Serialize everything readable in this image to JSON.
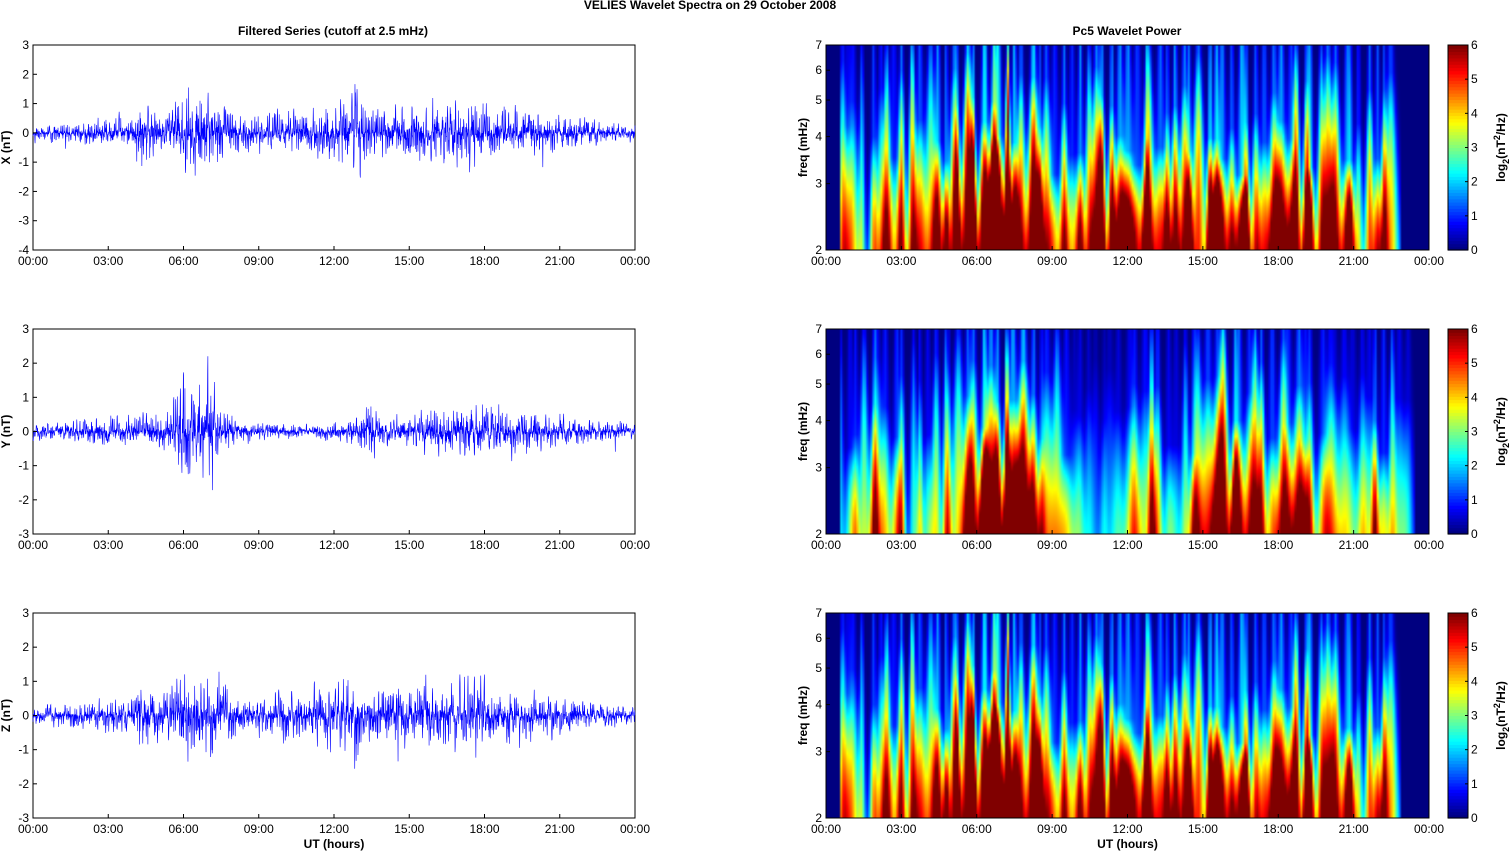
{
  "figure": {
    "title": "VELIES Wavelet Spectra on 29 October   2008",
    "left_column_title": "Filtered Series (cutoff at 2.5 mHz)",
    "right_column_title": "Pc5 Wavelet Power",
    "xlabel": "UT (hours)",
    "spec_ylabel": "freq (mHz)",
    "cbar_label_prefix": "log",
    "cbar_label_sub": "2",
    "cbar_label_mid": "(nT",
    "cbar_label_sup": "2",
    "cbar_label_suffix": "/Hz)"
  },
  "chart_data": [
    {
      "type": "line",
      "panel": "X",
      "ylabel": "X (nT)",
      "xlim": [
        "00:00",
        "24:00"
      ],
      "xticks": [
        "00:00",
        "03:00",
        "06:00",
        "09:00",
        "12:00",
        "15:00",
        "18:00",
        "21:00",
        "00:00"
      ],
      "ylim": [
        -4,
        3
      ],
      "yticks": [
        "-4",
        "-3",
        "-2",
        "-1",
        "0",
        "1",
        "2",
        "3"
      ],
      "line_color": "#0000ff",
      "envelope": {
        "hours": [
          0,
          1,
          2,
          3,
          4,
          4.3,
          5,
          5.5,
          6,
          6.5,
          7,
          7.5,
          8,
          8.5,
          9,
          9.5,
          10,
          10.5,
          11,
          11.5,
          12,
          12.5,
          12.9,
          13.3,
          14,
          14.5,
          15,
          15.5,
          16,
          16.5,
          17,
          17.5,
          18,
          18.5,
          19,
          19.5,
          20,
          20.5,
          21,
          21.5,
          22,
          22.5,
          23,
          23.5,
          24
        ],
        "amplitude_nT": [
          0.45,
          0.55,
          0.65,
          0.8,
          0.9,
          2.2,
          1.0,
          1.3,
          2.4,
          2.5,
          2.3,
          1.7,
          1.1,
          1.0,
          0.95,
          1.0,
          1.2,
          1.1,
          1.3,
          1.4,
          1.5,
          1.9,
          2.9,
          1.5,
          1.3,
          1.5,
          1.8,
          1.6,
          1.5,
          1.6,
          1.8,
          2.0,
          1.6,
          1.3,
          1.5,
          1.3,
          1.2,
          1.0,
          1.0,
          0.9,
          0.8,
          0.6,
          0.55,
          0.5,
          0.45
        ]
      }
    },
    {
      "type": "line",
      "panel": "Y",
      "ylabel": "Y (nT)",
      "xlim": [
        "00:00",
        "24:00"
      ],
      "xticks": [
        "00:00",
        "03:00",
        "06:00",
        "09:00",
        "12:00",
        "15:00",
        "18:00",
        "21:00",
        "00:00"
      ],
      "ylim": [
        -3,
        3
      ],
      "yticks": [
        "-3",
        "-2",
        "-1",
        "0",
        "1",
        "2",
        "3"
      ],
      "line_color": "#0000ff",
      "envelope": {
        "hours": [
          0,
          1,
          2,
          3,
          4,
          5,
          5.5,
          6,
          6.5,
          7,
          7.5,
          8,
          8.5,
          9,
          10,
          11,
          12,
          13,
          13.2,
          14,
          15,
          16,
          17,
          18,
          19,
          20,
          21,
          22,
          23,
          24
        ],
        "amplitude_nT": [
          0.35,
          0.45,
          0.55,
          0.75,
          0.6,
          0.8,
          1.2,
          2.6,
          2.0,
          2.9,
          1.1,
          0.7,
          0.5,
          0.4,
          0.35,
          0.35,
          0.4,
          0.7,
          1.6,
          0.6,
          0.8,
          1.1,
          1.2,
          1.3,
          1.1,
          0.8,
          0.7,
          0.6,
          0.5,
          0.35
        ]
      }
    },
    {
      "type": "line",
      "panel": "Z",
      "ylabel": "Z (nT)",
      "xlim": [
        "00:00",
        "24:00"
      ],
      "xticks": [
        "00:00",
        "03:00",
        "06:00",
        "09:00",
        "12:00",
        "15:00",
        "18:00",
        "21:00",
        "00:00"
      ],
      "ylim": [
        -3,
        3
      ],
      "yticks": [
        "-3",
        "-2",
        "-1",
        "0",
        "1",
        "2",
        "3"
      ],
      "line_color": "#0000ff",
      "envelope": {
        "hours": [
          0,
          1,
          2,
          3,
          4,
          4.3,
          5,
          5.5,
          6,
          6.5,
          7,
          7.5,
          8,
          8.5,
          9,
          9.5,
          10,
          10.5,
          11,
          11.5,
          12,
          12.5,
          12.9,
          13.3,
          14,
          14.5,
          15,
          15.5,
          16,
          16.5,
          17,
          17.5,
          18,
          18.5,
          19,
          19.5,
          20,
          20.5,
          21,
          21.5,
          22,
          22.5,
          23,
          23.5,
          24
        ],
        "amplitude_nT": [
          0.4,
          0.5,
          0.6,
          0.75,
          0.85,
          1.7,
          1.0,
          1.2,
          2.1,
          2.0,
          2.0,
          1.5,
          1.0,
          0.9,
          0.85,
          0.9,
          1.1,
          1.0,
          1.2,
          1.3,
          1.4,
          1.7,
          2.4,
          1.4,
          1.2,
          1.4,
          1.6,
          1.5,
          1.4,
          1.5,
          1.7,
          1.8,
          1.5,
          1.2,
          1.4,
          1.2,
          1.1,
          0.9,
          0.9,
          0.8,
          0.7,
          0.55,
          0.5,
          0.45,
          0.4
        ]
      }
    },
    {
      "type": "heatmap",
      "panel": "X",
      "colormap": "jet",
      "xlim": [
        "00:00",
        "24:00"
      ],
      "xticks": [
        "00:00",
        "03:00",
        "06:00",
        "09:00",
        "12:00",
        "15:00",
        "18:00",
        "21:00",
        "00:00"
      ],
      "ylim": [
        2,
        7
      ],
      "yscale": "log",
      "yticks": [
        "2",
        "3",
        "4",
        "5",
        "6",
        "7"
      ],
      "clim": [
        0,
        6
      ],
      "cticks": [
        "0",
        "1",
        "2",
        "3",
        "4",
        "5",
        "6"
      ],
      "data_extent_hours": [
        0.5,
        22.9
      ],
      "activity": {
        "hours": [
          0.5,
          1,
          2,
          3,
          4,
          5,
          6,
          7,
          8,
          9,
          10,
          11,
          12,
          13,
          14,
          15,
          16,
          17,
          18,
          19,
          20,
          21,
          22,
          22.9
        ],
        "level": [
          0.4,
          0.45,
          0.55,
          0.6,
          0.7,
          0.75,
          1.0,
          1.0,
          0.95,
          0.7,
          0.65,
          0.75,
          0.7,
          0.8,
          0.7,
          0.85,
          0.9,
          0.8,
          0.8,
          0.75,
          0.7,
          0.6,
          0.55,
          0.45
        ]
      }
    },
    {
      "type": "heatmap",
      "panel": "Y",
      "colormap": "jet",
      "xlim": [
        "00:00",
        "24:00"
      ],
      "xticks": [
        "00:00",
        "03:00",
        "06:00",
        "09:00",
        "12:00",
        "15:00",
        "18:00",
        "21:00",
        "00:00"
      ],
      "ylim": [
        2,
        7
      ],
      "yscale": "log",
      "yticks": [
        "2",
        "3",
        "4",
        "5",
        "6",
        "7"
      ],
      "clim": [
        0,
        6
      ],
      "cticks": [
        "0",
        "1",
        "2",
        "3",
        "4",
        "5",
        "6"
      ],
      "data_extent_hours": [
        0.5,
        23.5
      ],
      "activity": {
        "hours": [
          0.5,
          1,
          2,
          3,
          4,
          5,
          6,
          7,
          8,
          9,
          10,
          11,
          12,
          13,
          14,
          15,
          16,
          17,
          18,
          19,
          20,
          21,
          22,
          23,
          23.5
        ],
        "level": [
          0.3,
          0.35,
          0.5,
          0.55,
          0.4,
          0.5,
          0.95,
          0.9,
          0.8,
          0.45,
          0.25,
          0.2,
          0.25,
          0.55,
          0.3,
          0.55,
          0.75,
          0.6,
          0.75,
          0.6,
          0.35,
          0.3,
          0.55,
          0.3,
          0.25
        ]
      }
    },
    {
      "type": "heatmap",
      "panel": "Z",
      "colormap": "jet",
      "xlim": [
        "00:00",
        "24:00"
      ],
      "xticks": [
        "00:00",
        "03:00",
        "06:00",
        "09:00",
        "12:00",
        "15:00",
        "18:00",
        "21:00",
        "00:00"
      ],
      "ylim": [
        2,
        7
      ],
      "yscale": "log",
      "yticks": [
        "2",
        "3",
        "4",
        "5",
        "6",
        "7"
      ],
      "clim": [
        0,
        6
      ],
      "cticks": [
        "0",
        "1",
        "2",
        "3",
        "4",
        "5",
        "6"
      ],
      "data_extent_hours": [
        0.5,
        22.9
      ],
      "activity": {
        "hours": [
          0.5,
          1,
          2,
          3,
          4,
          5,
          6,
          7,
          8,
          9,
          10,
          11,
          12,
          13,
          14,
          15,
          16,
          17,
          18,
          19,
          20,
          21,
          22,
          22.9
        ],
        "level": [
          0.4,
          0.45,
          0.55,
          0.6,
          0.7,
          0.75,
          1.0,
          1.0,
          0.95,
          0.7,
          0.65,
          0.75,
          0.7,
          0.8,
          0.7,
          0.85,
          0.9,
          0.8,
          0.8,
          0.75,
          0.7,
          0.6,
          0.55,
          0.45
        ]
      }
    }
  ]
}
